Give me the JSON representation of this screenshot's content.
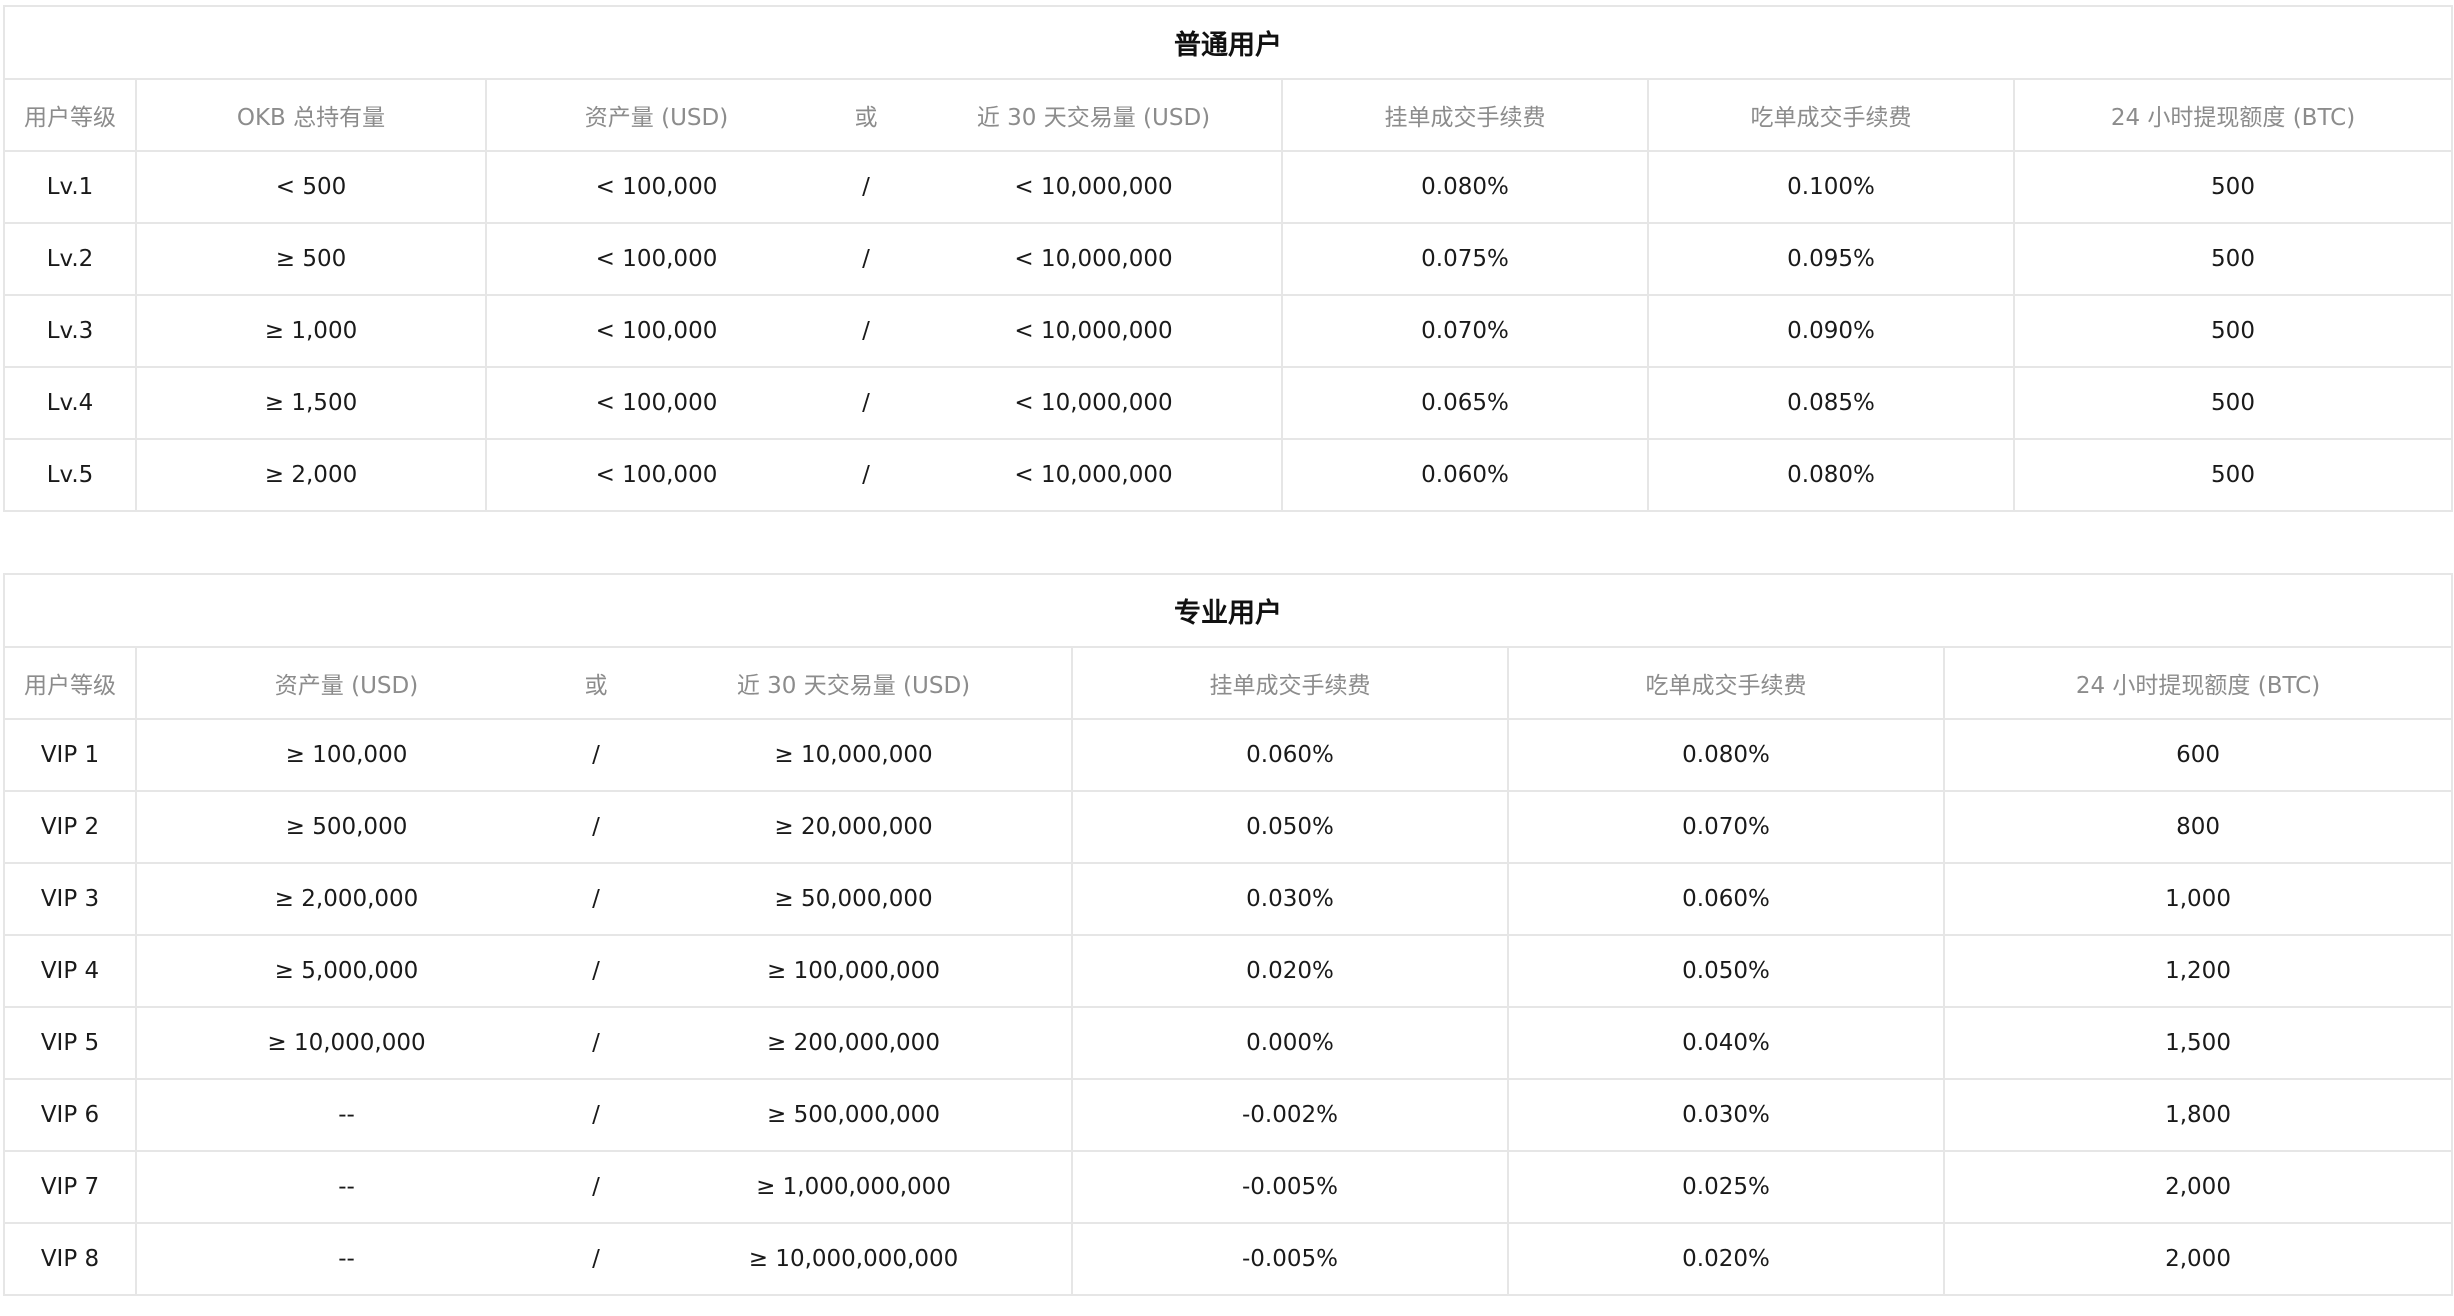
{
  "normal": {
    "title": "普通用户",
    "headers": {
      "level": "用户等级",
      "okb": "OKB 总持有量",
      "assets": "资产量 (USD)",
      "or": "或",
      "volume": "近 30 天交易量 (USD)",
      "maker": "挂单成交手续费",
      "taker": "吃单成交手续费",
      "withdraw": "24 小时提现额度 (BTC)"
    },
    "rows": [
      {
        "level": "Lv.1",
        "okb": "< 500",
        "assets": "< 100,000",
        "sep": "/",
        "volume": "< 10,000,000",
        "maker": "0.080%",
        "taker": "0.100%",
        "withdraw": "500"
      },
      {
        "level": "Lv.2",
        "okb": "≥ 500",
        "assets": "< 100,000",
        "sep": "/",
        "volume": "< 10,000,000",
        "maker": "0.075%",
        "taker": "0.095%",
        "withdraw": "500"
      },
      {
        "level": "Lv.3",
        "okb": "≥ 1,000",
        "assets": "< 100,000",
        "sep": "/",
        "volume": "< 10,000,000",
        "maker": "0.070%",
        "taker": "0.090%",
        "withdraw": "500"
      },
      {
        "level": "Lv.4",
        "okb": "≥ 1,500",
        "assets": "< 100,000",
        "sep": "/",
        "volume": "< 10,000,000",
        "maker": "0.065%",
        "taker": "0.085%",
        "withdraw": "500"
      },
      {
        "level": "Lv.5",
        "okb": "≥ 2,000",
        "assets": "< 100,000",
        "sep": "/",
        "volume": "< 10,000,000",
        "maker": "0.060%",
        "taker": "0.080%",
        "withdraw": "500"
      }
    ]
  },
  "pro": {
    "title": "专业用户",
    "headers": {
      "level": "用户等级",
      "assets": "资产量 (USD)",
      "or": "或",
      "volume": "近 30 天交易量 (USD)",
      "maker": "挂单成交手续费",
      "taker": "吃单成交手续费",
      "withdraw": "24 小时提现额度 (BTC)"
    },
    "rows": [
      {
        "level": "VIP 1",
        "assets": "≥ 100,000",
        "sep": "/",
        "volume": "≥ 10,000,000",
        "maker": "0.060%",
        "taker": "0.080%",
        "withdraw": "600"
      },
      {
        "level": "VIP 2",
        "assets": "≥ 500,000",
        "sep": "/",
        "volume": "≥ 20,000,000",
        "maker": "0.050%",
        "taker": "0.070%",
        "withdraw": "800"
      },
      {
        "level": "VIP 3",
        "assets": "≥ 2,000,000",
        "sep": "/",
        "volume": "≥ 50,000,000",
        "maker": "0.030%",
        "taker": "0.060%",
        "withdraw": "1,000"
      },
      {
        "level": "VIP 4",
        "assets": "≥ 5,000,000",
        "sep": "/",
        "volume": "≥ 100,000,000",
        "maker": "0.020%",
        "taker": "0.050%",
        "withdraw": "1,200"
      },
      {
        "level": "VIP 5",
        "assets": "≥ 10,000,000",
        "sep": "/",
        "volume": "≥ 200,000,000",
        "maker": "0.000%",
        "taker": "0.040%",
        "withdraw": "1,500"
      },
      {
        "level": "VIP 6",
        "assets": "--",
        "sep": "/",
        "volume": "≥ 500,000,000",
        "maker": "-0.002%",
        "taker": "0.030%",
        "withdraw": "1,800"
      },
      {
        "level": "VIP 7",
        "assets": "--",
        "sep": "/",
        "volume": "≥ 1,000,000,000",
        "maker": "-0.005%",
        "taker": "0.025%",
        "withdraw": "2,000"
      },
      {
        "level": "VIP 8",
        "assets": "--",
        "sep": "/",
        "volume": "≥ 10,000,000,000",
        "maker": "-0.005%",
        "taker": "0.020%",
        "withdraw": "2,000"
      }
    ]
  }
}
